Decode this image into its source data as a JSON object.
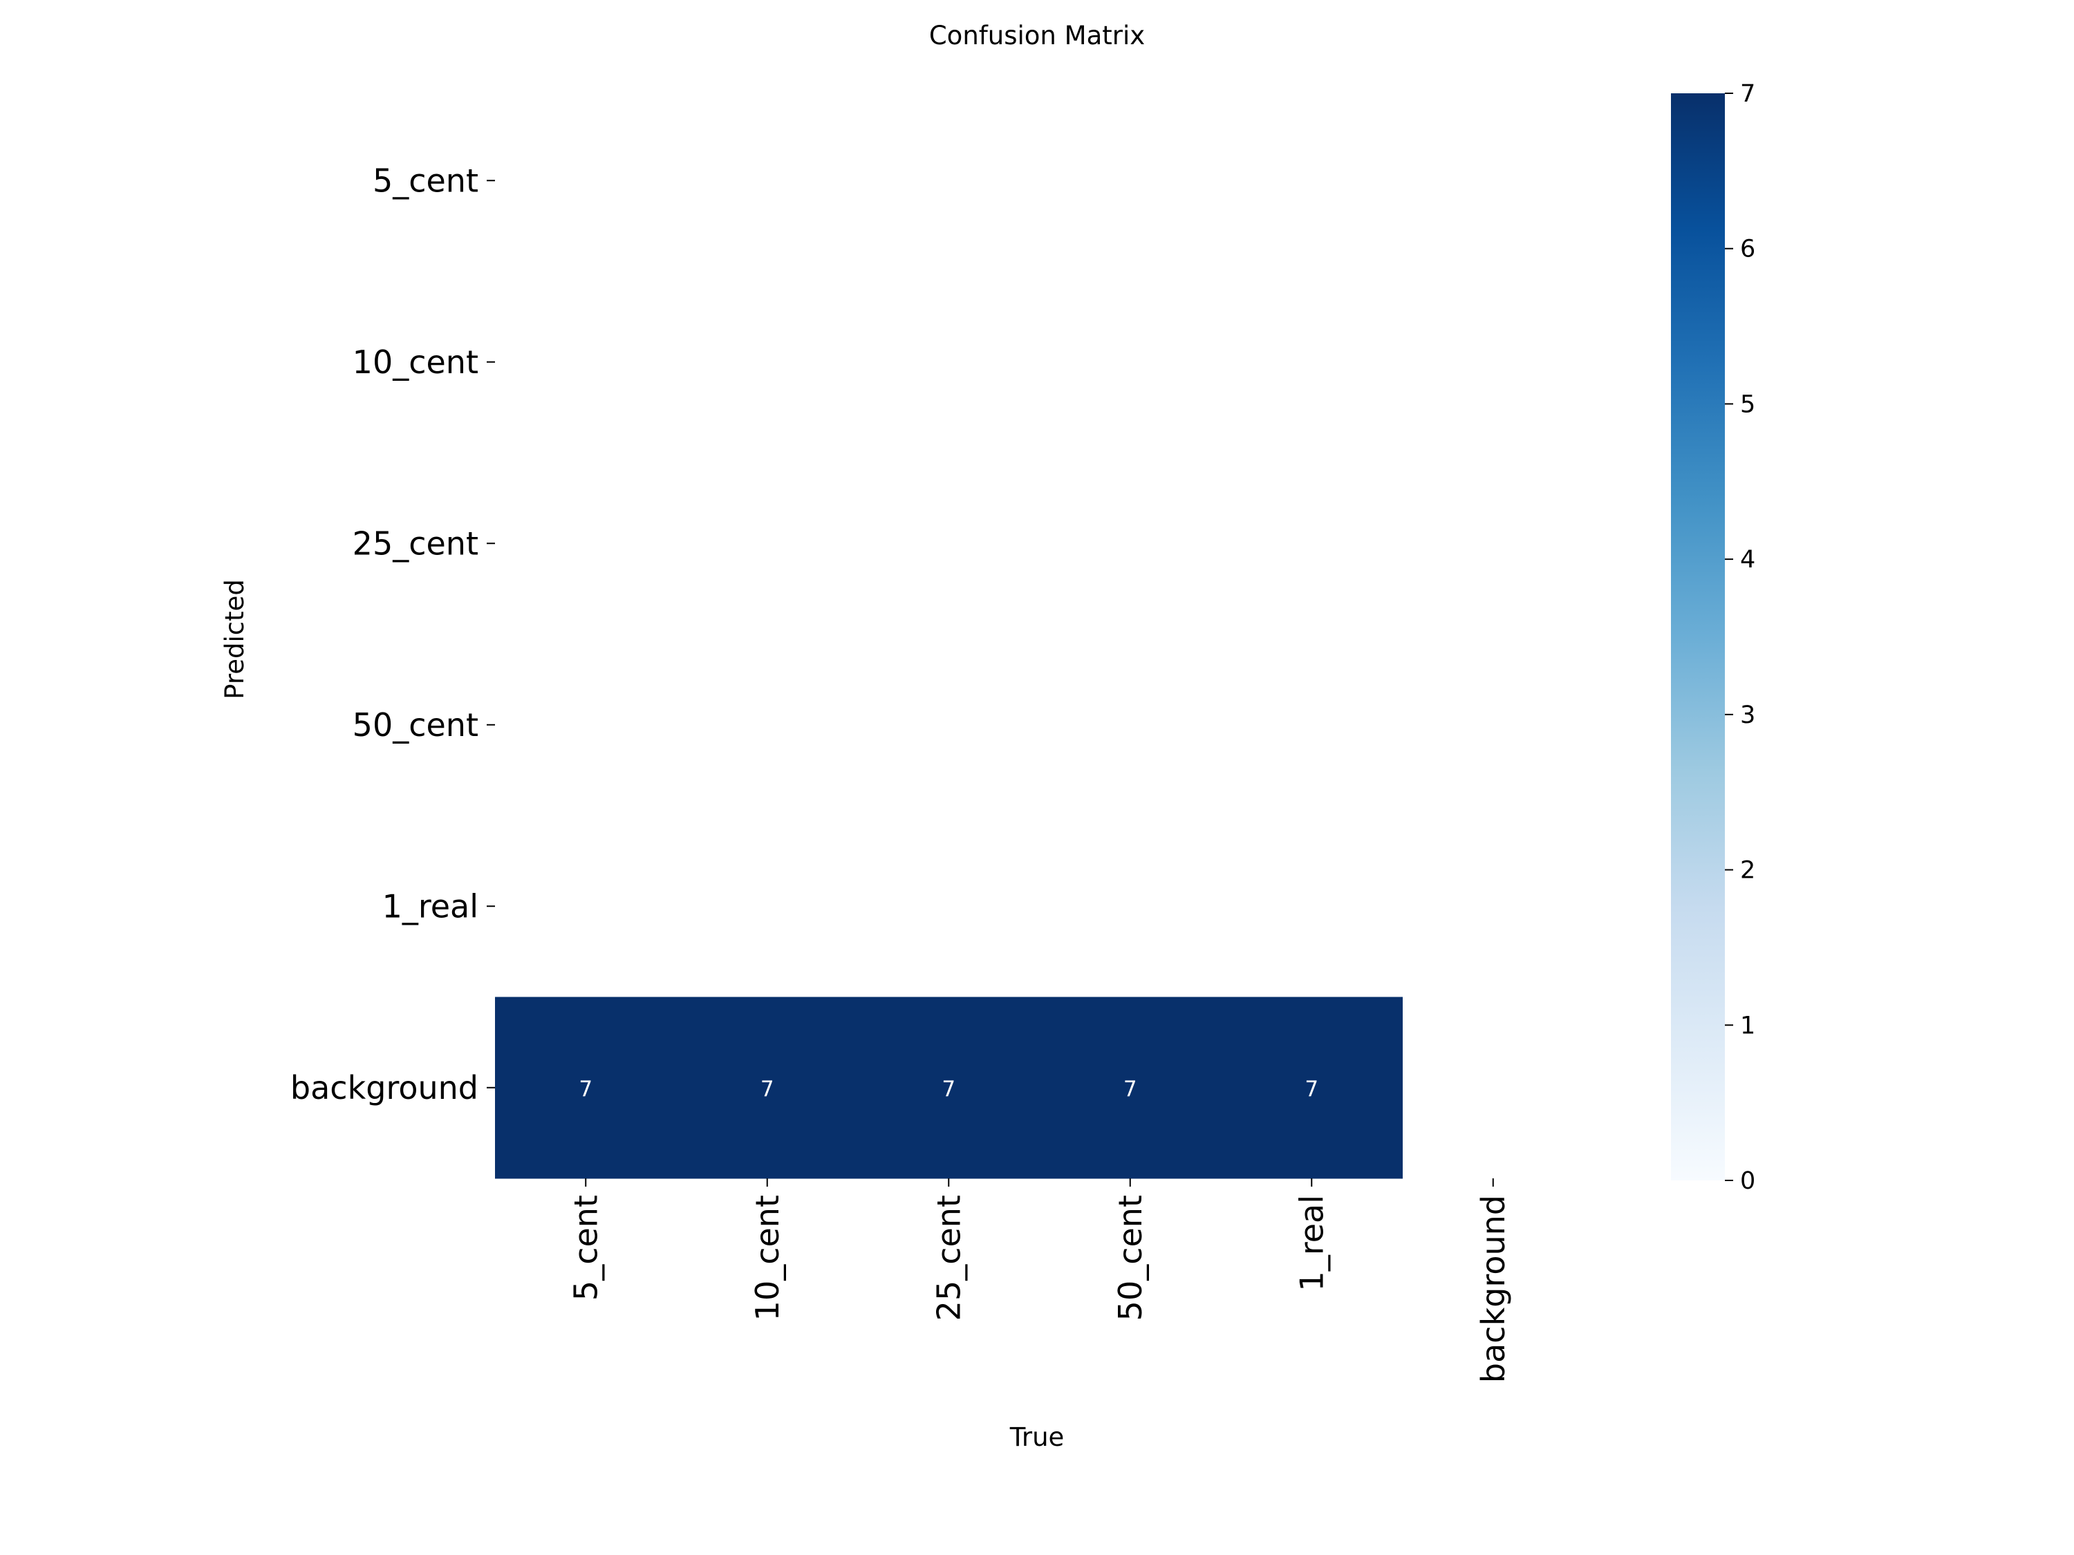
{
  "chart_data": {
    "type": "heatmap",
    "title": "Confusion Matrix",
    "xlabel": "True",
    "ylabel": "Predicted",
    "x_categories": [
      "5_cent",
      "10_cent",
      "25_cent",
      "50_cent",
      "1_real",
      "background"
    ],
    "y_categories": [
      "5_cent",
      "10_cent",
      "25_cent",
      "50_cent",
      "1_real",
      "background"
    ],
    "values": [
      [
        null,
        null,
        null,
        null,
        null,
        null
      ],
      [
        null,
        null,
        null,
        null,
        null,
        null
      ],
      [
        null,
        null,
        null,
        null,
        null,
        null
      ],
      [
        null,
        null,
        null,
        null,
        null,
        null
      ],
      [
        null,
        null,
        null,
        null,
        null,
        null
      ],
      [
        7,
        7,
        7,
        7,
        7,
        null
      ]
    ],
    "colorbar": {
      "min": 0,
      "max": 7,
      "ticks": [
        0,
        1,
        2,
        3,
        4,
        5,
        6,
        7
      ],
      "colormap": "Blues"
    },
    "colors": {
      "cmap_low": "#f7fbff",
      "cmap_high": "#08306b",
      "cell_text": "#ffffff",
      "text": "#000000"
    }
  }
}
